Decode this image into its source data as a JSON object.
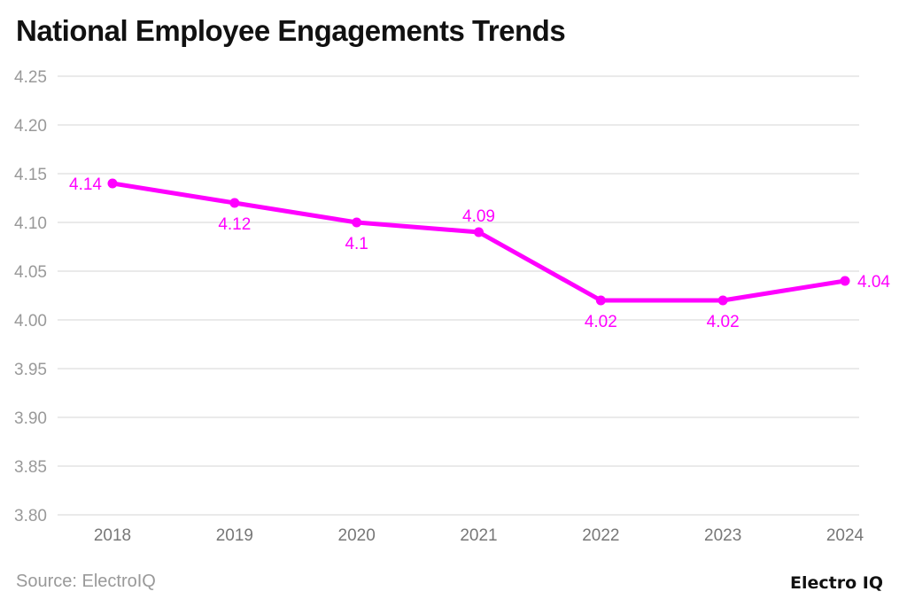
{
  "chart_data": {
    "type": "line",
    "title": "National Employee Engagements Trends",
    "categories": [
      "2018",
      "2019",
      "2020",
      "2021",
      "2022",
      "2023",
      "2024"
    ],
    "values": [
      4.14,
      4.12,
      4.1,
      4.09,
      4.02,
      4.02,
      4.04
    ],
    "data_labels": [
      "4.14",
      "4.12",
      "4.1",
      "4.09",
      "4.02",
      "4.02",
      "4.04"
    ],
    "label_positions": [
      "left",
      "below",
      "below",
      "above",
      "below",
      "below",
      "right"
    ],
    "ylim": [
      3.8,
      4.25
    ],
    "yticks": [
      "3.80",
      "3.85",
      "3.90",
      "3.95",
      "4.00",
      "4.05",
      "4.10",
      "4.15",
      "4.20",
      "4.25"
    ],
    "grid": true,
    "color": "#ff00ff"
  },
  "source": "Source: ElectroIQ",
  "logo": "Electro IQ"
}
